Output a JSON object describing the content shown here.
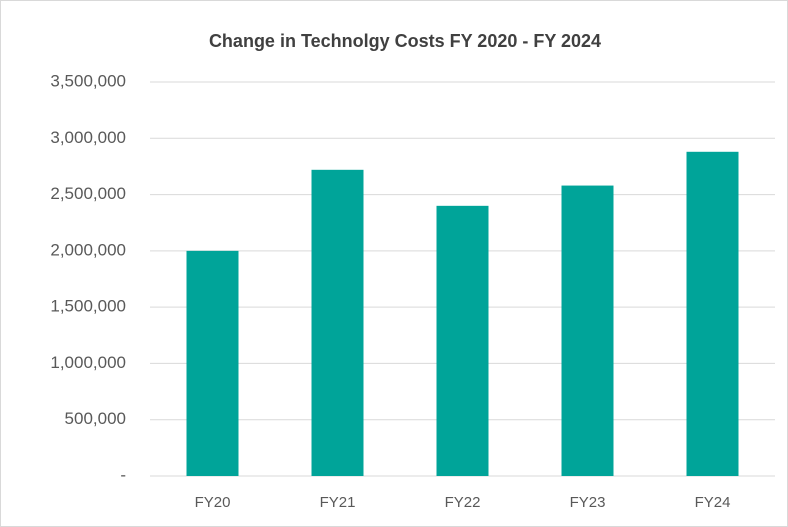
{
  "chart_data": {
    "type": "bar",
    "title": "Change in Technolgy Costs FY 2020 - FY 2024",
    "categories": [
      "FY20",
      "FY21",
      "FY22",
      "FY23",
      "FY24"
    ],
    "values": [
      2000000,
      2720000,
      2400000,
      2580000,
      2880000
    ],
    "color": "#00a499",
    "ylim": [
      0,
      3500000
    ],
    "yticks": [
      {
        "value": 0,
        "label": "-"
      },
      {
        "value": 500000,
        "label": "500,000"
      },
      {
        "value": 1000000,
        "label": "1,000,000"
      },
      {
        "value": 1500000,
        "label": "1,500,000"
      },
      {
        "value": 2000000,
        "label": "2,000,000"
      },
      {
        "value": 2500000,
        "label": "2,500,000"
      },
      {
        "value": 3000000,
        "label": "3,000,000"
      },
      {
        "value": 3500000,
        "label": "3,500,000"
      }
    ],
    "grid": true
  }
}
